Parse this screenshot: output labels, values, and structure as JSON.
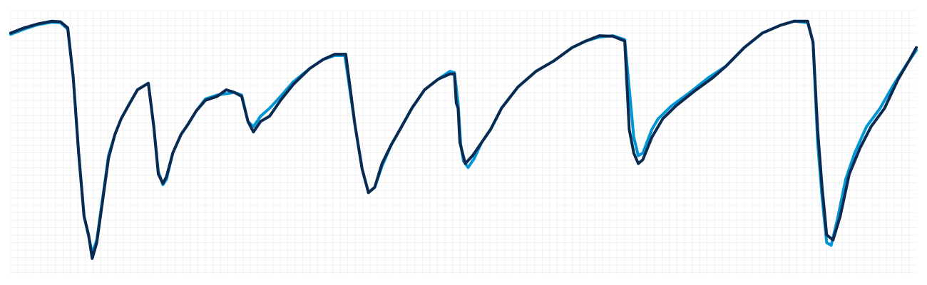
{
  "chart_data": {
    "type": "line",
    "title": "",
    "xlabel": "",
    "ylabel": "",
    "xlim": [
      0,
      100
    ],
    "ylim": [
      0,
      100
    ],
    "grid": true,
    "legend": "none",
    "series": [
      {
        "color": "#0096D6",
        "points": [
          [
            0.0,
            91.0
          ],
          [
            1.5,
            93.0
          ],
          [
            3.0,
            94.7
          ],
          [
            4.5,
            95.6
          ],
          [
            5.5,
            95.5
          ],
          [
            6.3,
            93.0
          ],
          [
            6.9,
            75.0
          ],
          [
            7.5,
            46.0
          ],
          [
            8.1,
            22.0
          ],
          [
            8.7,
            13.0
          ],
          [
            9.0,
            8.0
          ],
          [
            9.5,
            13.0
          ],
          [
            10.2,
            30.0
          ],
          [
            10.8,
            45.0
          ],
          [
            11.5,
            53.0
          ],
          [
            12.2,
            59.0
          ],
          [
            13.0,
            64.0
          ],
          [
            14.0,
            70.0
          ],
          [
            15.2,
            72.5
          ],
          [
            15.8,
            56.0
          ],
          [
            16.3,
            39.0
          ],
          [
            16.8,
            34.0
          ],
          [
            17.2,
            36.0
          ],
          [
            17.9,
            46.0
          ],
          [
            18.8,
            53.0
          ],
          [
            19.6,
            57.0
          ],
          [
            20.5,
            62.0
          ],
          [
            21.5,
            66.5
          ],
          [
            22.8,
            68.0
          ],
          [
            23.8,
            68.5
          ],
          [
            24.7,
            69.0
          ],
          [
            25.5,
            68.0
          ],
          [
            26.2,
            58.0
          ],
          [
            26.8,
            56.0
          ],
          [
            27.6,
            60.0
          ],
          [
            28.6,
            63.0
          ],
          [
            29.8,
            67.5
          ],
          [
            31.2,
            73.0
          ],
          [
            33.0,
            78.0
          ],
          [
            34.5,
            81.5
          ],
          [
            35.8,
            83.0
          ],
          [
            36.9,
            83.0
          ],
          [
            38.0,
            57.0
          ],
          [
            38.8,
            40.0
          ],
          [
            39.5,
            31.0
          ],
          [
            40.2,
            33.0
          ],
          [
            41.0,
            41.0
          ],
          [
            42.0,
            49.0
          ],
          [
            43.0,
            55.0
          ],
          [
            44.3,
            63.0
          ],
          [
            45.7,
            70.0
          ],
          [
            47.2,
            74.0
          ],
          [
            48.5,
            77.0
          ],
          [
            49.0,
            76.5
          ],
          [
            49.4,
            65.0
          ],
          [
            49.7,
            49.0
          ],
          [
            50.0,
            43.0
          ],
          [
            50.5,
            40.5
          ],
          [
            51.2,
            44.0
          ],
          [
            52.0,
            50.0
          ],
          [
            53.0,
            55.0
          ],
          [
            54.2,
            63.0
          ],
          [
            56.0,
            71.0
          ],
          [
            58.0,
            77.0
          ],
          [
            60.0,
            81.0
          ],
          [
            62.0,
            86.0
          ],
          [
            63.5,
            88.5
          ],
          [
            65.0,
            90.0
          ],
          [
            66.5,
            90.5
          ],
          [
            67.8,
            89.0
          ],
          [
            68.8,
            52.0
          ],
          [
            69.3,
            45.0
          ],
          [
            69.8,
            46.0
          ],
          [
            70.8,
            55.0
          ],
          [
            71.5,
            59.0
          ],
          [
            73.0,
            64.0
          ],
          [
            75.0,
            69.0
          ],
          [
            77.0,
            74.5
          ],
          [
            79.0,
            79.0
          ],
          [
            81.0,
            86.0
          ],
          [
            83.0,
            91.5
          ],
          [
            85.0,
            94.5
          ],
          [
            86.5,
            96.0
          ],
          [
            88.0,
            95.5
          ],
          [
            88.6,
            88.0
          ],
          [
            89.1,
            50.0
          ],
          [
            89.6,
            29.0
          ],
          [
            90.1,
            12.0
          ],
          [
            90.6,
            11.0
          ],
          [
            91.3,
            21.0
          ],
          [
            92.2,
            36.0
          ],
          [
            93.2,
            46.0
          ],
          [
            94.5,
            56.0
          ],
          [
            96.0,
            63.0
          ],
          [
            97.5,
            72.0
          ],
          [
            99.0,
            80.0
          ],
          [
            100.0,
            85.0
          ]
        ]
      },
      {
        "color": "#0B2A52",
        "points": [
          [
            0.0,
            91.5
          ],
          [
            1.5,
            93.5
          ],
          [
            3.0,
            95.0
          ],
          [
            4.5,
            96.0
          ],
          [
            5.5,
            95.8
          ],
          [
            6.3,
            93.5
          ],
          [
            6.9,
            75.0
          ],
          [
            7.5,
            46.0
          ],
          [
            8.1,
            22.0
          ],
          [
            8.6,
            15.0
          ],
          [
            9.0,
            6.0
          ],
          [
            9.5,
            12.0
          ],
          [
            10.2,
            29.0
          ],
          [
            10.8,
            44.0
          ],
          [
            11.5,
            53.0
          ],
          [
            12.2,
            59.0
          ],
          [
            13.0,
            64.0
          ],
          [
            14.0,
            70.0
          ],
          [
            15.2,
            72.5
          ],
          [
            15.8,
            56.0
          ],
          [
            16.3,
            38.0
          ],
          [
            16.8,
            34.5
          ],
          [
            17.2,
            37.0
          ],
          [
            17.9,
            46.0
          ],
          [
            18.8,
            53.0
          ],
          [
            19.6,
            57.0
          ],
          [
            20.5,
            62.0
          ],
          [
            21.5,
            66.0
          ],
          [
            22.8,
            67.5
          ],
          [
            23.8,
            70.0
          ],
          [
            24.7,
            69.0
          ],
          [
            25.5,
            67.5
          ],
          [
            26.2,
            58.0
          ],
          [
            26.8,
            54.0
          ],
          [
            27.6,
            58.0
          ],
          [
            28.6,
            60.0
          ],
          [
            29.8,
            66.0
          ],
          [
            31.2,
            72.0
          ],
          [
            33.0,
            78.0
          ],
          [
            34.5,
            81.5
          ],
          [
            35.8,
            83.5
          ],
          [
            37.0,
            83.5
          ],
          [
            38.0,
            57.0
          ],
          [
            38.8,
            40.0
          ],
          [
            39.5,
            31.0
          ],
          [
            40.2,
            33.0
          ],
          [
            41.0,
            42.0
          ],
          [
            42.0,
            49.0
          ],
          [
            43.0,
            55.0
          ],
          [
            44.3,
            63.0
          ],
          [
            45.7,
            70.0
          ],
          [
            47.2,
            74.0
          ],
          [
            48.5,
            76.0
          ],
          [
            49.0,
            76.0
          ],
          [
            49.2,
            65.0
          ],
          [
            49.4,
            63.0
          ],
          [
            49.6,
            50.0
          ],
          [
            50.2,
            42.0
          ],
          [
            51.0,
            45.0
          ],
          [
            52.0,
            50.0
          ],
          [
            53.0,
            55.0
          ],
          [
            54.2,
            63.0
          ],
          [
            56.0,
            71.0
          ],
          [
            58.0,
            77.0
          ],
          [
            60.0,
            81.0
          ],
          [
            62.0,
            86.0
          ],
          [
            63.5,
            88.5
          ],
          [
            65.0,
            90.5
          ],
          [
            66.5,
            90.3
          ],
          [
            67.8,
            88.5
          ],
          [
            68.3,
            55.0
          ],
          [
            68.8,
            46.0
          ],
          [
            69.3,
            42.0
          ],
          [
            69.8,
            43.5
          ],
          [
            70.8,
            52.0
          ],
          [
            72.0,
            59.0
          ],
          [
            73.5,
            64.0
          ],
          [
            75.5,
            69.5
          ],
          [
            77.5,
            74.5
          ],
          [
            79.0,
            79.0
          ],
          [
            81.0,
            86.0
          ],
          [
            83.0,
            91.5
          ],
          [
            85.0,
            94.5
          ],
          [
            86.5,
            96.0
          ],
          [
            88.0,
            96.0
          ],
          [
            88.6,
            88.0
          ],
          [
            89.1,
            55.0
          ],
          [
            89.6,
            33.0
          ],
          [
            90.1,
            15.0
          ],
          [
            90.8,
            13.0
          ],
          [
            91.6,
            22.0
          ],
          [
            92.6,
            38.0
          ],
          [
            93.8,
            48.0
          ],
          [
            95.0,
            56.0
          ],
          [
            96.5,
            63.0
          ],
          [
            98.0,
            74.0
          ],
          [
            99.2,
            81.0
          ],
          [
            100.0,
            86.0
          ]
        ]
      }
    ]
  }
}
